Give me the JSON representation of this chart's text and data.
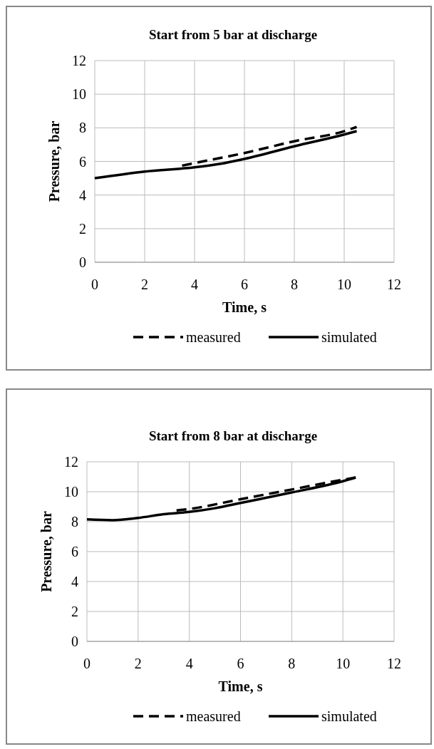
{
  "chart_data": [
    {
      "type": "line",
      "title": "Start from 5 bar at discharge",
      "xlabel": "Time, s",
      "ylabel": "Pressure, bar",
      "xlim": [
        0,
        12
      ],
      "xticks": [
        0,
        2,
        4,
        6,
        8,
        10,
        12
      ],
      "ylim": [
        0,
        12
      ],
      "yticks": [
        0,
        2,
        4,
        6,
        8,
        10,
        12
      ],
      "grid": true,
      "legend": "bottom",
      "series": [
        {
          "name": "measured",
          "color": "#000000",
          "line_style": "dashed",
          "x": [
            3.5,
            4,
            6,
            8,
            10,
            10.5
          ],
          "values": [
            5.75,
            5.9,
            6.5,
            7.2,
            7.8,
            8.05
          ]
        },
        {
          "name": "simulated",
          "color": "#000000",
          "line_style": "solid",
          "x": [
            0,
            2,
            4,
            5,
            6,
            8,
            10,
            10.5
          ],
          "values": [
            5.0,
            5.4,
            5.65,
            5.85,
            6.15,
            6.9,
            7.6,
            7.8
          ]
        }
      ]
    },
    {
      "type": "line",
      "title": "Start from 8 bar at discharge",
      "xlabel": "Time, s",
      "ylabel": "Pressure, bar",
      "xlim": [
        0,
        12
      ],
      "xticks": [
        0,
        2,
        4,
        6,
        8,
        10,
        12
      ],
      "ylim": [
        0,
        12
      ],
      "yticks": [
        0,
        2,
        4,
        6,
        8,
        10,
        12
      ],
      "grid": true,
      "legend": "bottom",
      "series": [
        {
          "name": "measured",
          "color": "#000000",
          "line_style": "dashed",
          "x": [
            3.5,
            4,
            6,
            8,
            10,
            10.5
          ],
          "values": [
            8.75,
            8.85,
            9.5,
            10.15,
            10.8,
            10.95
          ]
        },
        {
          "name": "simulated",
          "color": "#000000",
          "line_style": "solid",
          "x": [
            0,
            1,
            2,
            3,
            4,
            5,
            6,
            8,
            10,
            10.5
          ],
          "values": [
            8.15,
            8.1,
            8.25,
            8.5,
            8.65,
            8.9,
            9.25,
            9.95,
            10.7,
            10.95
          ]
        }
      ]
    }
  ]
}
